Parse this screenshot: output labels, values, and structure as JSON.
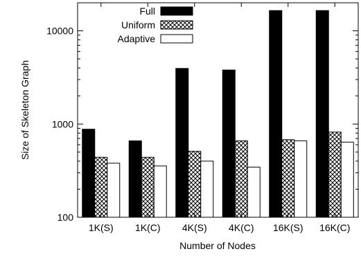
{
  "chart_data": {
    "type": "bar",
    "title": "",
    "xlabel": "Number of Nodes",
    "ylabel": "Size of Skeleton Graph",
    "yscale": "log",
    "ylim": [
      100,
      20000
    ],
    "yticks": [
      100,
      1000,
      10000
    ],
    "yticklabels": [
      "100",
      "1000",
      "10000"
    ],
    "grid": false,
    "legend": "top-left",
    "categories": [
      "1K(S)",
      "1K(C)",
      "4K(S)",
      "4K(C)",
      "16K(S)",
      "16K(C)"
    ],
    "series": [
      {
        "name": "Full",
        "pattern": "solid-black",
        "values": [
          880,
          660,
          3950,
          3800,
          16500,
          16500
        ]
      },
      {
        "name": "Uniform",
        "pattern": "crosshatch",
        "values": [
          440,
          440,
          510,
          660,
          680,
          820
        ]
      },
      {
        "name": "Adaptive",
        "pattern": "white",
        "values": [
          380,
          355,
          400,
          345,
          660,
          640
        ]
      }
    ]
  }
}
